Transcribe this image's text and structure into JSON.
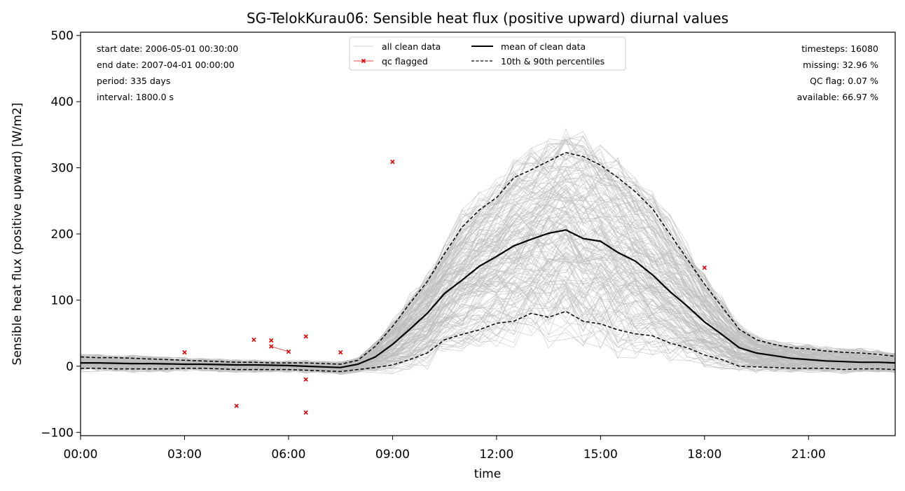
{
  "chart_data": {
    "type": "line",
    "title": "SG-TelokKurau06: Sensible heat flux (positive upward) diurnal values",
    "xlabel": "time",
    "ylabel": "Sensible heat flux (positive upward) [W/m2]",
    "xlim": [
      "00:00",
      "23:30"
    ],
    "ylim": [
      -105,
      505
    ],
    "x_ticks": [
      "00:00",
      "03:00",
      "06:00",
      "09:00",
      "12:00",
      "15:00",
      "18:00",
      "21:00"
    ],
    "y_ticks": [
      -100,
      0,
      100,
      200,
      300,
      400,
      500
    ],
    "grid": false,
    "legend": {
      "placement": "upper-center",
      "entries": [
        "all clean data",
        "qc flagged",
        "mean of clean data",
        "10th & 90th percentiles"
      ]
    },
    "info_left": [
      "start date: 2006-05-01 00:30:00",
      "end date: 2007-04-01 00:00:00",
      "period: 335 days",
      "interval: 1800.0 s"
    ],
    "info_right": [
      "timesteps: 16080",
      "missing: 32.96 %",
      "QC flag: 0.07 %",
      "available: 66.97 %"
    ],
    "x_hours": [
      0,
      0.5,
      1,
      1.5,
      2,
      2.5,
      3,
      3.5,
      4,
      4.5,
      5,
      5.5,
      6,
      6.5,
      7,
      7.5,
      8,
      8.5,
      9,
      9.5,
      10,
      10.5,
      11,
      11.5,
      12,
      12.5,
      13,
      13.5,
      14,
      14.5,
      15,
      15.5,
      16,
      16.5,
      17,
      17.5,
      18,
      18.5,
      19,
      19.5,
      20,
      20.5,
      21,
      21.5,
      22,
      22.5,
      23,
      23.5
    ],
    "series": [
      {
        "name": "mean of clean data",
        "values": [
          5,
          5,
          4.5,
          4,
          4,
          3.5,
          3,
          3,
          2.5,
          2,
          2,
          1.5,
          1,
          0,
          -1,
          -2,
          3,
          14,
          33,
          56,
          80,
          110,
          130,
          151,
          166,
          182,
          192,
          201,
          206,
          193,
          189,
          172,
          159,
          138,
          113,
          91,
          67,
          48,
          28,
          20,
          16,
          12,
          10,
          8,
          7,
          6,
          6,
          5
        ]
      },
      {
        "name": "10th & 90th percentiles",
        "values": [
          14,
          13,
          13,
          12,
          11,
          10,
          9,
          8,
          7,
          6,
          6,
          5,
          5,
          5,
          4,
          3,
          9,
          30,
          60,
          95,
          128,
          170,
          210,
          236,
          255,
          285,
          297,
          310,
          323,
          317,
          304,
          285,
          264,
          238,
          200,
          162,
          124,
          90,
          56,
          40,
          33,
          28,
          26,
          23,
          21,
          20,
          18,
          15
        ]
      },
      {
        "name": "10th & 90th percentiles",
        "values": [
          -3,
          -3,
          -4,
          -4,
          -4,
          -4,
          -3,
          -3,
          -4,
          -5,
          -5,
          -5,
          -5,
          -6,
          -7,
          -8,
          -5,
          -2,
          2,
          10,
          20,
          40,
          48,
          55,
          65,
          68,
          80,
          74,
          83,
          68,
          64,
          55,
          49,
          46,
          35,
          28,
          17,
          10,
          0,
          -1,
          -2,
          -3,
          -3,
          -3,
          -5,
          -4,
          -4,
          -5
        ]
      },
      {
        "name": "qc flagged",
        "values": [
          [
            3.0,
            21
          ],
          [
            4.5,
            -60
          ],
          [
            5.0,
            40
          ],
          [
            5.5,
            39
          ],
          [
            5.5,
            30
          ],
          [
            6.0,
            22
          ],
          [
            6.5,
            45
          ],
          [
            6.5,
            -20
          ],
          [
            6.5,
            -70
          ],
          [
            7.5,
            21
          ],
          [
            9.0,
            309
          ],
          [
            18.0,
            149
          ]
        ]
      }
    ]
  }
}
